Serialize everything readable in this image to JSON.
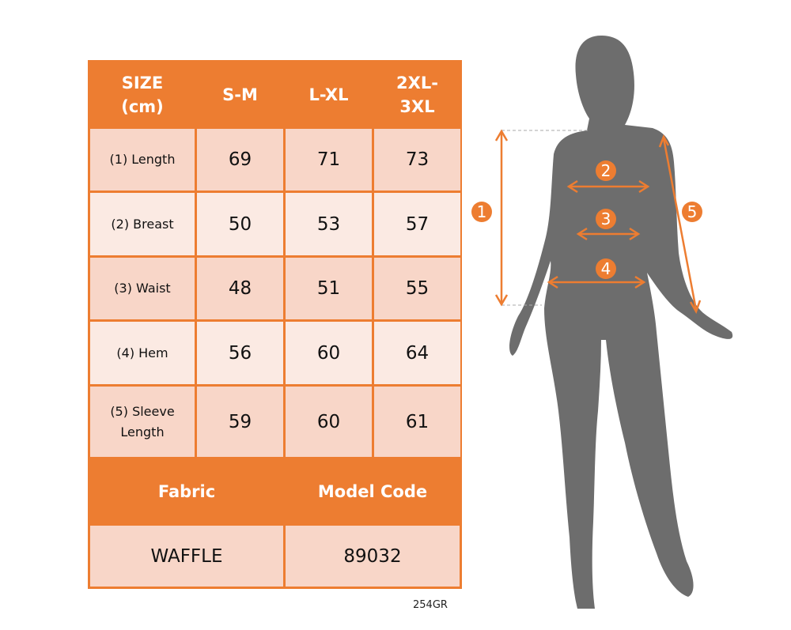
{
  "table": {
    "header": [
      "SIZE\n(cm)",
      "S-M",
      "L-XL",
      "2XL-\n3XL"
    ],
    "rows": [
      {
        "label": "(1) Length",
        "values": [
          "69",
          "71",
          "73"
        ]
      },
      {
        "label": "(2) Breast",
        "values": [
          "50",
          "53",
          "57"
        ]
      },
      {
        "label": "(3) Waist",
        "values": [
          "48",
          "51",
          "55"
        ]
      },
      {
        "label": "(4) Hem",
        "values": [
          "56",
          "60",
          "64"
        ]
      },
      {
        "label": "(5) Sleeve\nLength",
        "values": [
          "59",
          "60",
          "61"
        ]
      }
    ],
    "footer_header": [
      "Fabric",
      "Model Code"
    ],
    "footer_values": [
      "WAFFLE",
      "89032"
    ]
  },
  "product_code": "254GR",
  "diagram_markers": [
    "1",
    "2",
    "3",
    "4",
    "5"
  ],
  "colors": {
    "accent": "#ed7d31",
    "row_dark": "#f8d6c8",
    "row_light": "#fbeae3",
    "silhouette": "#6d6d6d"
  }
}
